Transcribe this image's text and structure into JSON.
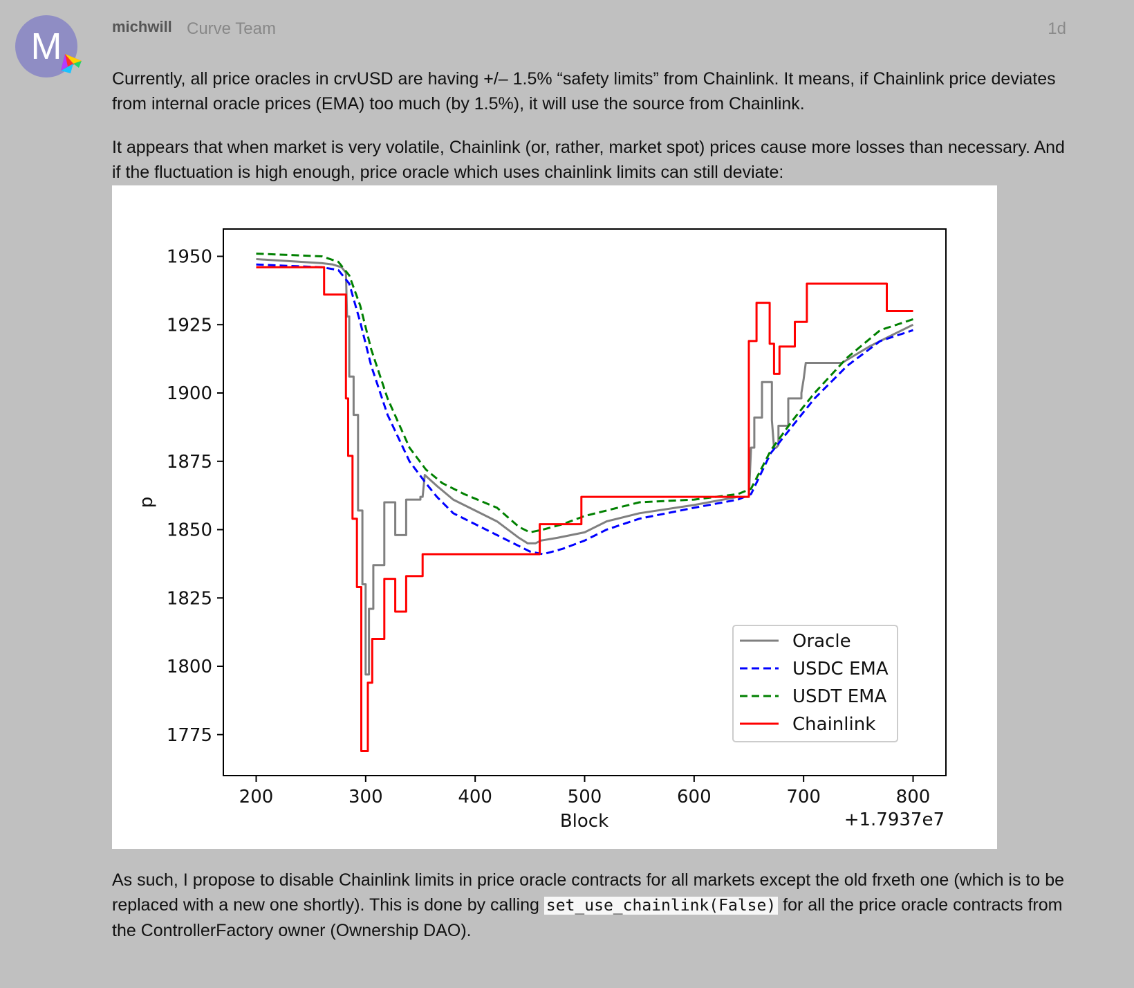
{
  "post": {
    "avatar_letter": "M",
    "username": "michwill",
    "user_title": "Curve Team",
    "date": "1d",
    "paragraph1": "Currently, all price oracles in crvUSD are having +/– 1.5% “safety limits” from Chainlink. It means, if Chainlink price deviates from internal oracle prices (EMA) too much (by 1.5%), it will use the source from Chainlink.",
    "paragraph2": "It appears that when market is very volatile, Chainlink (or, rather, market spot) prices cause more losses than necessary. And if the fluctuation is high enough, price oracle which uses chainlink limits can still deviate:",
    "paragraph3_before": "As such, I propose to disable Chainlink limits in price oracle contracts for all markets except the old frxeth one (which is to be replaced with a new one shortly). This is done by calling ",
    "paragraph3_code": "set_use_chainlink(False)",
    "paragraph3_after": " for all the price oracle contracts from the ControllerFactory owner (Ownership DAO)."
  },
  "chart_data": {
    "type": "line",
    "xlabel": "Block",
    "ylabel": "p",
    "x_offset_label": "+1.7937e7",
    "xlim": [
      170,
      830
    ],
    "ylim": [
      1760,
      1960
    ],
    "xticks": [
      200,
      300,
      400,
      500,
      600,
      700,
      800
    ],
    "yticks": [
      1775,
      1800,
      1825,
      1850,
      1875,
      1900,
      1925,
      1950
    ],
    "legend_position": "lower-right",
    "grid": false,
    "series": [
      {
        "name": "Oracle",
        "color": "#808080",
        "dash": "solid",
        "step": false,
        "points": [
          [
            200,
            1949
          ],
          [
            240,
            1948
          ],
          [
            260,
            1947.5
          ],
          [
            270,
            1947
          ],
          [
            278,
            1946
          ],
          [
            280,
            1945
          ],
          [
            282,
            1944
          ],
          [
            283,
            1928
          ],
          [
            285,
            1928
          ],
          [
            285,
            1906
          ],
          [
            289,
            1906
          ],
          [
            289,
            1892
          ],
          [
            293,
            1892
          ],
          [
            293,
            1857
          ],
          [
            297,
            1857
          ],
          [
            297,
            1830
          ],
          [
            300,
            1830
          ],
          [
            300,
            1797
          ],
          [
            303,
            1797
          ],
          [
            303,
            1821
          ],
          [
            307,
            1821
          ],
          [
            307,
            1837
          ],
          [
            317,
            1837
          ],
          [
            317,
            1860
          ],
          [
            327,
            1860
          ],
          [
            327,
            1848
          ],
          [
            337,
            1848
          ],
          [
            337,
            1861
          ],
          [
            350,
            1861
          ],
          [
            350,
            1862
          ],
          [
            352,
            1862
          ],
          [
            354,
            1870
          ],
          [
            365,
            1866
          ],
          [
            380,
            1861
          ],
          [
            400,
            1857
          ],
          [
            420,
            1853
          ],
          [
            440,
            1847
          ],
          [
            448,
            1845
          ],
          [
            455,
            1845
          ],
          [
            460,
            1846
          ],
          [
            475,
            1847
          ],
          [
            500,
            1849
          ],
          [
            520,
            1853
          ],
          [
            550,
            1856
          ],
          [
            600,
            1859
          ],
          [
            640,
            1862
          ],
          [
            650,
            1862
          ],
          [
            652,
            1880
          ],
          [
            655,
            1880
          ],
          [
            655,
            1891
          ],
          [
            662,
            1891
          ],
          [
            662,
            1904
          ],
          [
            671,
            1904
          ],
          [
            671,
            1890
          ],
          [
            673,
            1880
          ],
          [
            675,
            1880
          ],
          [
            677,
            1881
          ],
          [
            677,
            1888
          ],
          [
            686,
            1888
          ],
          [
            686,
            1898
          ],
          [
            698,
            1898
          ],
          [
            698,
            1900
          ],
          [
            700,
            1905
          ],
          [
            702,
            1911
          ],
          [
            735,
            1911
          ],
          [
            760,
            1917
          ],
          [
            780,
            1921
          ],
          [
            800,
            1925
          ]
        ]
      },
      {
        "name": "USDC EMA",
        "color": "#0000ff",
        "dash": "dashed",
        "step": false,
        "points": [
          [
            200,
            1947
          ],
          [
            230,
            1946.5
          ],
          [
            260,
            1946
          ],
          [
            275,
            1945
          ],
          [
            285,
            1940
          ],
          [
            295,
            1926
          ],
          [
            305,
            1910
          ],
          [
            320,
            1892
          ],
          [
            340,
            1875
          ],
          [
            355,
            1867
          ],
          [
            365,
            1862
          ],
          [
            380,
            1856
          ],
          [
            400,
            1852
          ],
          [
            420,
            1848
          ],
          [
            440,
            1844
          ],
          [
            450,
            1842
          ],
          [
            462,
            1841
          ],
          [
            480,
            1843
          ],
          [
            500,
            1846
          ],
          [
            520,
            1850
          ],
          [
            550,
            1854
          ],
          [
            600,
            1858
          ],
          [
            640,
            1861
          ],
          [
            652,
            1863
          ],
          [
            670,
            1878
          ],
          [
            690,
            1888
          ],
          [
            710,
            1898
          ],
          [
            740,
            1910
          ],
          [
            770,
            1919
          ],
          [
            800,
            1923
          ]
        ]
      },
      {
        "name": "USDT EMA",
        "color": "#008000",
        "dash": "dashed",
        "step": false,
        "points": [
          [
            200,
            1951
          ],
          [
            230,
            1950.5
          ],
          [
            260,
            1950
          ],
          [
            275,
            1948
          ],
          [
            285,
            1943
          ],
          [
            295,
            1932
          ],
          [
            305,
            1916
          ],
          [
            320,
            1898
          ],
          [
            340,
            1880
          ],
          [
            355,
            1872
          ],
          [
            370,
            1867
          ],
          [
            390,
            1863
          ],
          [
            420,
            1858
          ],
          [
            440,
            1851
          ],
          [
            450,
            1849
          ],
          [
            462,
            1850
          ],
          [
            480,
            1852
          ],
          [
            500,
            1855
          ],
          [
            520,
            1857
          ],
          [
            550,
            1860
          ],
          [
            600,
            1861
          ],
          [
            640,
            1863
          ],
          [
            652,
            1865
          ],
          [
            670,
            1879
          ],
          [
            690,
            1890
          ],
          [
            710,
            1900
          ],
          [
            740,
            1913
          ],
          [
            770,
            1923
          ],
          [
            800,
            1927
          ]
        ]
      },
      {
        "name": "Chainlink",
        "color": "#ff0000",
        "dash": "solid",
        "step": true,
        "points": [
          [
            200,
            1946
          ],
          [
            262,
            1946
          ],
          [
            262,
            1936
          ],
          [
            282,
            1936
          ],
          [
            282,
            1898
          ],
          [
            284,
            1898
          ],
          [
            284,
            1877
          ],
          [
            288,
            1877
          ],
          [
            288,
            1854
          ],
          [
            292,
            1854
          ],
          [
            292,
            1829
          ],
          [
            296,
            1829
          ],
          [
            296,
            1769
          ],
          [
            302,
            1769
          ],
          [
            302,
            1794
          ],
          [
            306,
            1794
          ],
          [
            306,
            1810
          ],
          [
            317,
            1810
          ],
          [
            317,
            1832
          ],
          [
            327,
            1832
          ],
          [
            327,
            1820
          ],
          [
            337,
            1820
          ],
          [
            337,
            1833
          ],
          [
            352,
            1833
          ],
          [
            352,
            1841
          ],
          [
            459,
            1841
          ],
          [
            459,
            1852
          ],
          [
            497,
            1852
          ],
          [
            497,
            1862
          ],
          [
            650,
            1862
          ],
          [
            650,
            1919
          ],
          [
            657,
            1919
          ],
          [
            657,
            1933
          ],
          [
            669,
            1933
          ],
          [
            669,
            1918
          ],
          [
            673,
            1918
          ],
          [
            673,
            1907
          ],
          [
            678,
            1907
          ],
          [
            678,
            1917
          ],
          [
            692,
            1917
          ],
          [
            692,
            1926
          ],
          [
            703,
            1926
          ],
          [
            703,
            1940
          ],
          [
            776,
            1940
          ],
          [
            776,
            1930
          ],
          [
            800,
            1930
          ]
        ]
      }
    ]
  }
}
